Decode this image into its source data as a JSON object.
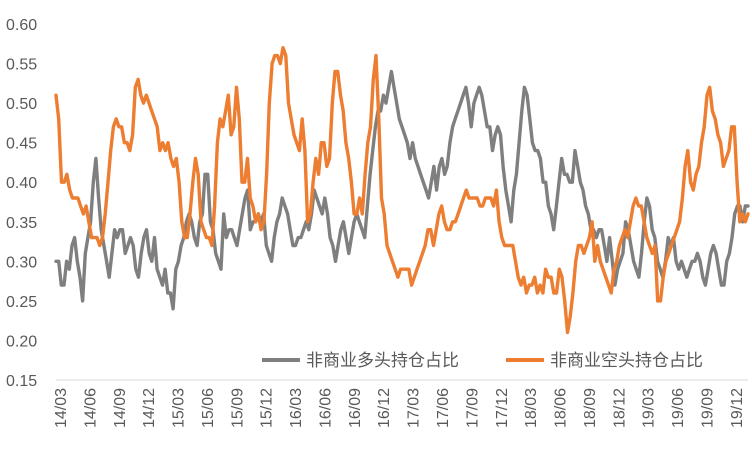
{
  "chart_data": {
    "type": "line",
    "title": "",
    "xlabel": "",
    "ylabel": "",
    "ylim": [
      0.15,
      0.6
    ],
    "yticks": [
      "0.15",
      "0.20",
      "0.25",
      "0.30",
      "0.35",
      "0.40",
      "0.45",
      "0.50",
      "0.55",
      "0.60"
    ],
    "grid": false,
    "legend_position": "bottom-right",
    "x_tick_labels": [
      "14/03",
      "14/06",
      "14/09",
      "14/12",
      "15/03",
      "15/06",
      "15/09",
      "15/12",
      "16/03",
      "16/06",
      "16/09",
      "16/12",
      "17/03",
      "17/06",
      "17/09",
      "17/12",
      "18/03",
      "18/06",
      "18/09",
      "18/12",
      "19/03",
      "19/06",
      "19/09",
      "19/12"
    ],
    "series": [
      {
        "name": "非商业多头持仓占比",
        "color": "#7f7f7f",
        "values": [
          0.3,
          0.3,
          0.27,
          0.27,
          0.3,
          0.29,
          0.32,
          0.33,
          0.3,
          0.28,
          0.25,
          0.31,
          0.33,
          0.35,
          0.4,
          0.43,
          0.38,
          0.34,
          0.32,
          0.3,
          0.28,
          0.31,
          0.34,
          0.33,
          0.34,
          0.34,
          0.31,
          0.32,
          0.33,
          0.32,
          0.29,
          0.28,
          0.31,
          0.33,
          0.34,
          0.31,
          0.3,
          0.33,
          0.29,
          0.28,
          0.27,
          0.29,
          0.26,
          0.26,
          0.24,
          0.29,
          0.3,
          0.32,
          0.33,
          0.35,
          0.36,
          0.35,
          0.33,
          0.32,
          0.35,
          0.36,
          0.41,
          0.41,
          0.35,
          0.34,
          0.31,
          0.3,
          0.29,
          0.36,
          0.33,
          0.34,
          0.34,
          0.33,
          0.32,
          0.34,
          0.36,
          0.38,
          0.39,
          0.34,
          0.35,
          0.35,
          0.36,
          0.35,
          0.36,
          0.32,
          0.31,
          0.3,
          0.33,
          0.35,
          0.36,
          0.38,
          0.37,
          0.36,
          0.34,
          0.32,
          0.32,
          0.33,
          0.33,
          0.34,
          0.35,
          0.34,
          0.36,
          0.39,
          0.38,
          0.37,
          0.36,
          0.38,
          0.36,
          0.33,
          0.32,
          0.3,
          0.32,
          0.34,
          0.35,
          0.33,
          0.31,
          0.33,
          0.35,
          0.36,
          0.35,
          0.34,
          0.33,
          0.37,
          0.41,
          0.44,
          0.47,
          0.49,
          0.49,
          0.51,
          0.5,
          0.52,
          0.54,
          0.52,
          0.5,
          0.48,
          0.47,
          0.46,
          0.45,
          0.43,
          0.45,
          0.43,
          0.42,
          0.41,
          0.4,
          0.39,
          0.38,
          0.4,
          0.42,
          0.39,
          0.42,
          0.43,
          0.41,
          0.42,
          0.45,
          0.47,
          0.48,
          0.49,
          0.5,
          0.51,
          0.52,
          0.5,
          0.47,
          0.5,
          0.51,
          0.52,
          0.51,
          0.49,
          0.47,
          0.47,
          0.44,
          0.46,
          0.47,
          0.46,
          0.42,
          0.39,
          0.37,
          0.35,
          0.39,
          0.41,
          0.45,
          0.49,
          0.52,
          0.51,
          0.48,
          0.45,
          0.44,
          0.44,
          0.43,
          0.4,
          0.4,
          0.37,
          0.36,
          0.34,
          0.37,
          0.4,
          0.43,
          0.41,
          0.41,
          0.4,
          0.4,
          0.44,
          0.42,
          0.4,
          0.39,
          0.37,
          0.36,
          0.34,
          0.34,
          0.33,
          0.34,
          0.34,
          0.32,
          0.3,
          0.33,
          0.3,
          0.27,
          0.29,
          0.3,
          0.31,
          0.35,
          0.34,
          0.32,
          0.3,
          0.29,
          0.28,
          0.31,
          0.35,
          0.38,
          0.37,
          0.34,
          0.33,
          0.3,
          0.29,
          0.28,
          0.3,
          0.33,
          0.32,
          0.33,
          0.3,
          0.29,
          0.3,
          0.29,
          0.28,
          0.29,
          0.3,
          0.3,
          0.31,
          0.3,
          0.28,
          0.27,
          0.29,
          0.31,
          0.32,
          0.31,
          0.29,
          0.27,
          0.27,
          0.3,
          0.31,
          0.33,
          0.36,
          0.37,
          0.37,
          0.35,
          0.37,
          0.37
        ]
      },
      {
        "name": "非商业空头持仓占比",
        "color": "#ed7d31",
        "values": [
          0.51,
          0.48,
          0.4,
          0.4,
          0.41,
          0.39,
          0.38,
          0.38,
          0.38,
          0.37,
          0.36,
          0.37,
          0.35,
          0.33,
          0.33,
          0.33,
          0.32,
          0.33,
          0.36,
          0.4,
          0.44,
          0.47,
          0.48,
          0.47,
          0.47,
          0.45,
          0.45,
          0.44,
          0.46,
          0.52,
          0.53,
          0.51,
          0.5,
          0.51,
          0.5,
          0.49,
          0.48,
          0.47,
          0.44,
          0.45,
          0.44,
          0.45,
          0.43,
          0.42,
          0.43,
          0.4,
          0.35,
          0.33,
          0.33,
          0.36,
          0.4,
          0.43,
          0.41,
          0.35,
          0.34,
          0.33,
          0.33,
          0.32,
          0.37,
          0.45,
          0.48,
          0.47,
          0.49,
          0.51,
          0.46,
          0.47,
          0.52,
          0.48,
          0.4,
          0.4,
          0.43,
          0.38,
          0.37,
          0.35,
          0.36,
          0.34,
          0.35,
          0.41,
          0.5,
          0.55,
          0.56,
          0.56,
          0.55,
          0.57,
          0.56,
          0.5,
          0.48,
          0.46,
          0.45,
          0.44,
          0.48,
          0.44,
          0.35,
          0.36,
          0.4,
          0.43,
          0.41,
          0.45,
          0.45,
          0.42,
          0.43,
          0.5,
          0.54,
          0.54,
          0.51,
          0.49,
          0.45,
          0.43,
          0.4,
          0.36,
          0.36,
          0.38,
          0.36,
          0.41,
          0.45,
          0.47,
          0.53,
          0.56,
          0.48,
          0.38,
          0.36,
          0.32,
          0.31,
          0.3,
          0.29,
          0.28,
          0.29,
          0.29,
          0.29,
          0.29,
          0.27,
          0.28,
          0.29,
          0.3,
          0.31,
          0.32,
          0.34,
          0.34,
          0.32,
          0.34,
          0.36,
          0.37,
          0.35,
          0.34,
          0.34,
          0.35,
          0.35,
          0.36,
          0.37,
          0.38,
          0.39,
          0.38,
          0.38,
          0.38,
          0.38,
          0.37,
          0.37,
          0.38,
          0.38,
          0.38,
          0.37,
          0.39,
          0.35,
          0.33,
          0.32,
          0.32,
          0.32,
          0.32,
          0.3,
          0.28,
          0.27,
          0.28,
          0.26,
          0.27,
          0.27,
          0.28,
          0.26,
          0.27,
          0.26,
          0.29,
          0.28,
          0.28,
          0.26,
          0.26,
          0.29,
          0.28,
          0.25,
          0.21,
          0.23,
          0.26,
          0.3,
          0.32,
          0.32,
          0.31,
          0.32,
          0.33,
          0.35,
          0.3,
          0.32,
          0.3,
          0.29,
          0.28,
          0.27,
          0.26,
          0.29,
          0.3,
          0.32,
          0.33,
          0.34,
          0.33,
          0.35,
          0.37,
          0.38,
          0.37,
          0.37,
          0.35,
          0.33,
          0.32,
          0.31,
          0.32,
          0.25,
          0.25,
          0.28,
          0.3,
          0.31,
          0.32,
          0.33,
          0.34,
          0.35,
          0.38,
          0.42,
          0.44,
          0.4,
          0.39,
          0.41,
          0.42,
          0.45,
          0.47,
          0.51,
          0.52,
          0.49,
          0.48,
          0.46,
          0.45,
          0.42,
          0.43,
          0.44,
          0.47,
          0.47,
          0.4,
          0.35,
          0.36,
          0.35,
          0.36
        ]
      }
    ]
  }
}
